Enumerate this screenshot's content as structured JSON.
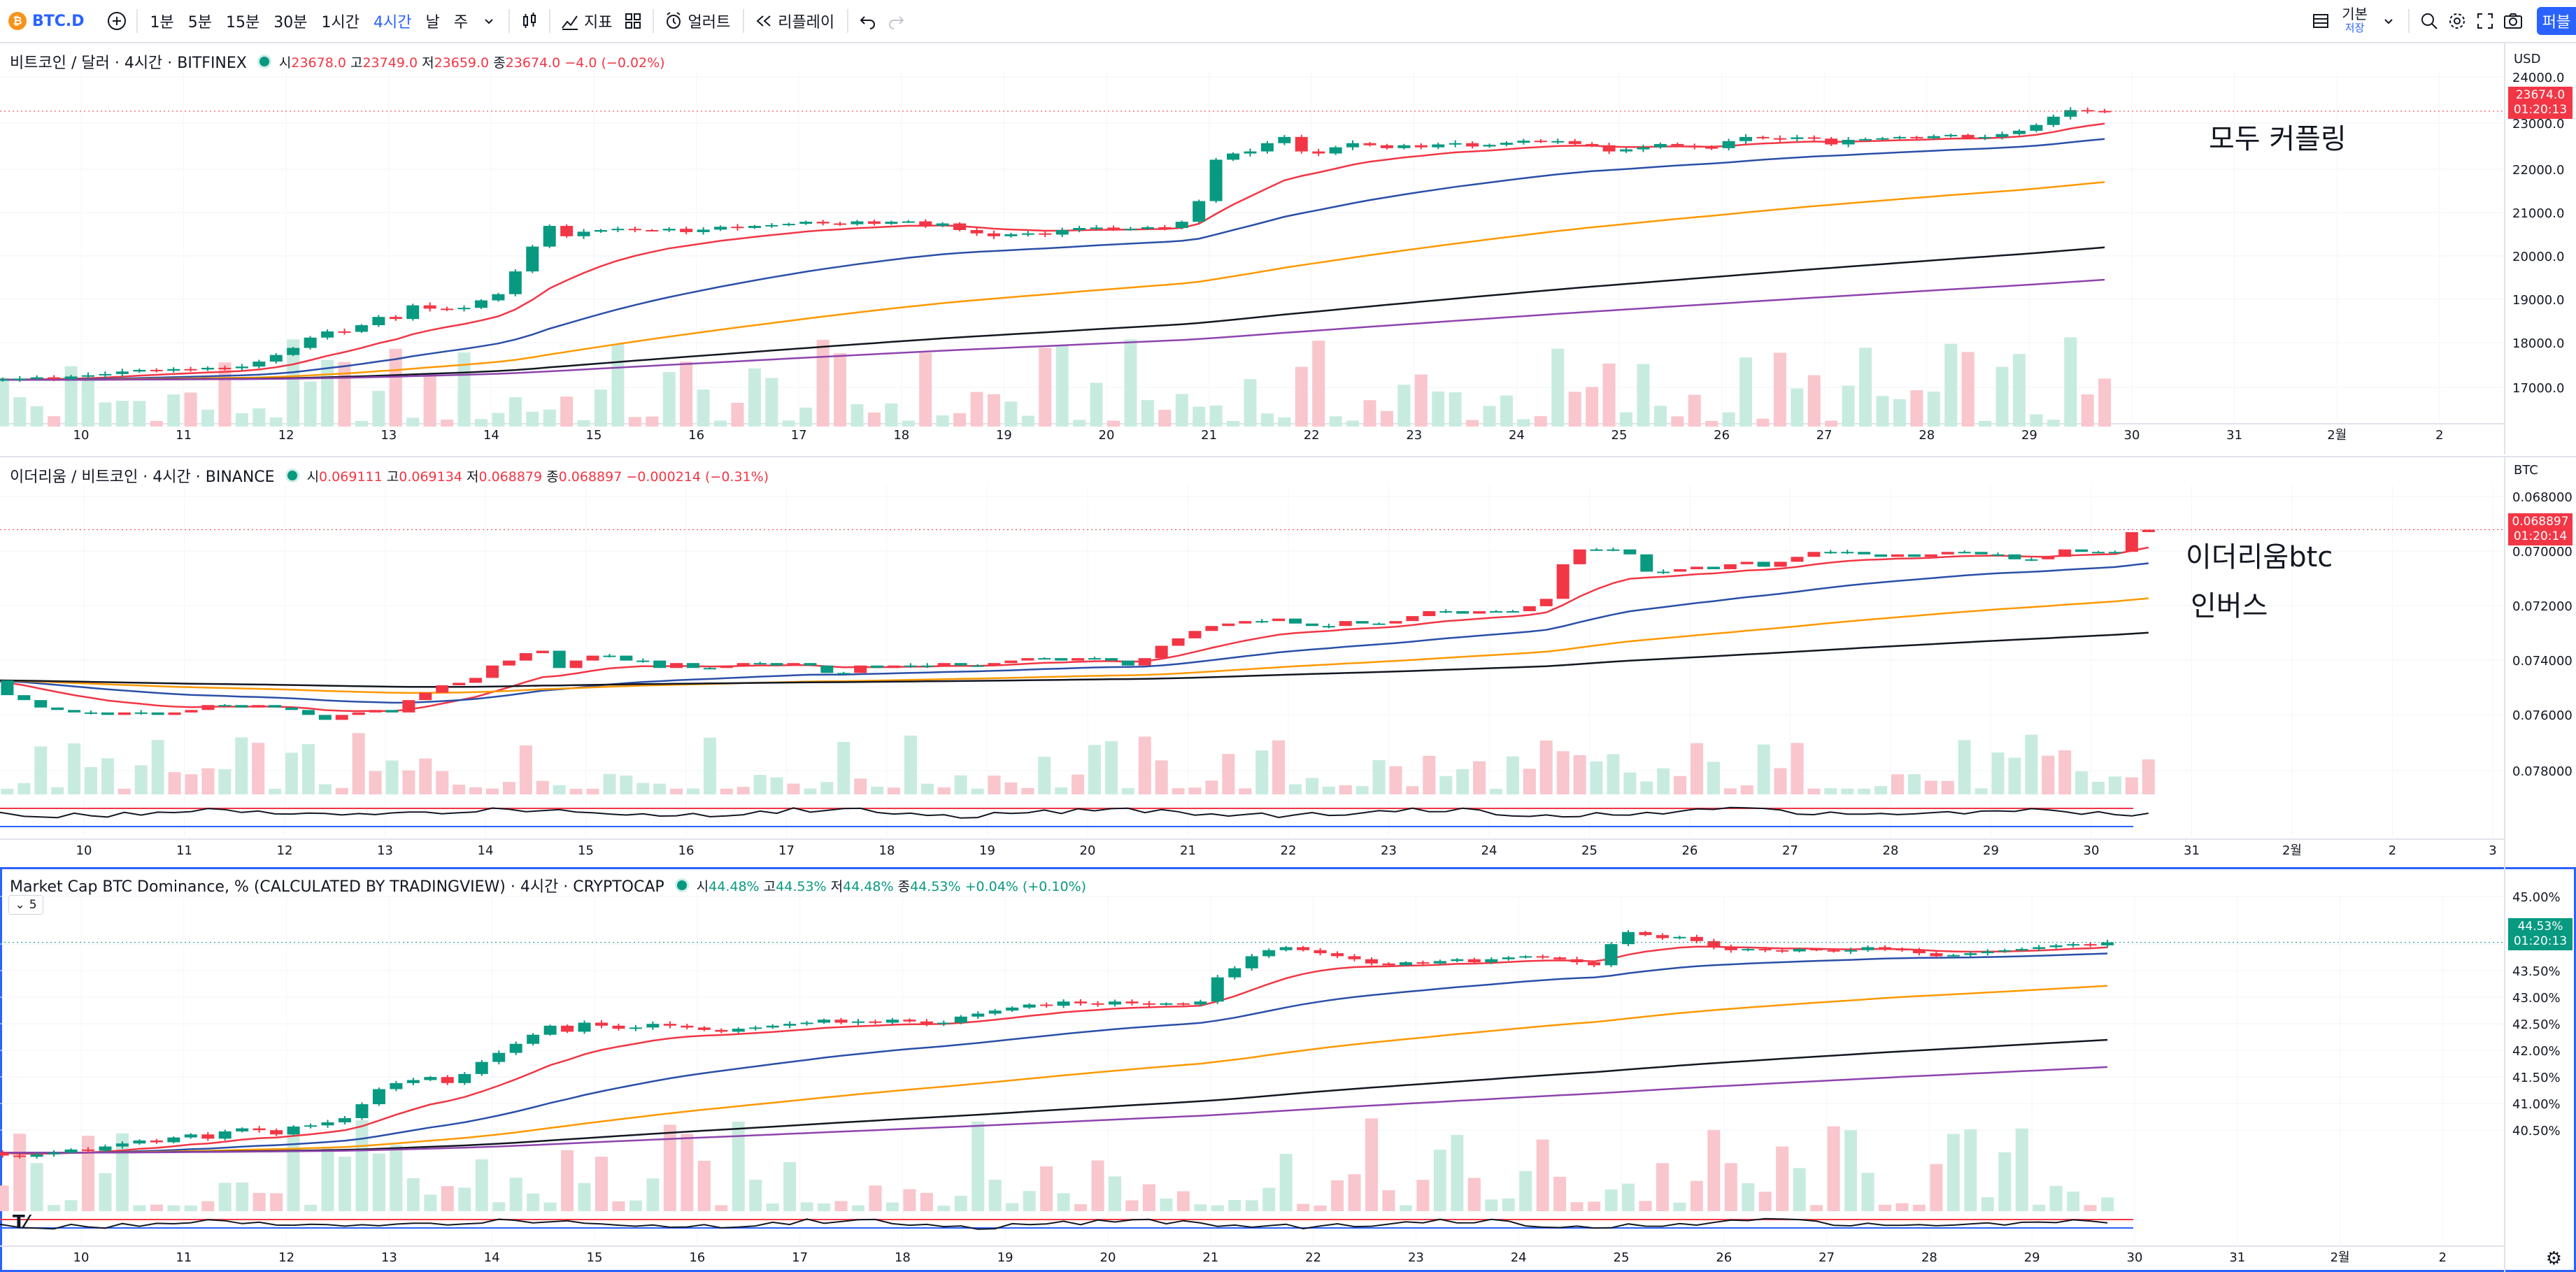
{
  "toolbar": {
    "symbol": "BTC.D",
    "intervals": [
      "1분",
      "5분",
      "15분",
      "30분",
      "1시간",
      "4시간",
      "날",
      "주"
    ],
    "active_interval": "4시간",
    "indicators_label": "지표",
    "alerts_label": "얼러트",
    "replay_label": "리플레이",
    "layout_name": "기본",
    "layout_save": "저장",
    "publish_label": "퍼블"
  },
  "colors": {
    "up": "#089981",
    "down": "#f23645",
    "ema1": "#f23645",
    "ema2": "#2a4fa8",
    "ema3": "#ff9800",
    "ema4": "#131722",
    "ema5": "#8e44ad",
    "accent": "#2962ff"
  },
  "panes": [
    {
      "title": "비트코인 / 달러 · 4시간 · BITFINEX",
      "ohlc": {
        "o_label": "시",
        "o": "23678.0",
        "h_label": "고",
        "h": "23749.0",
        "l_label": "저",
        "l": "23659.0",
        "c_label": "종",
        "c": "23674.0",
        "chg": "−4.0 (−0.02%)"
      },
      "unit": "USD",
      "price_badge": "23674.0",
      "countdown": "01:20:13",
      "annotation": "모두 커플링",
      "y_ticks": [
        "24000.0",
        "23000.0",
        "22000.0",
        "21000.0",
        "20000.0",
        "19000.0",
        "18000.0",
        "17000.0"
      ],
      "x_ticks": [
        "10",
        "11",
        "12",
        "13",
        "14",
        "15",
        "16",
        "17",
        "18",
        "19",
        "20",
        "21",
        "22",
        "23",
        "24",
        "25",
        "26",
        "27",
        "28",
        "29",
        "30",
        "31",
        "2월",
        "2"
      ]
    },
    {
      "title": "이더리움 / 비트코인 · 4시간 · BINANCE",
      "ohlc": {
        "o_label": "시",
        "o": "0.069111",
        "h_label": "고",
        "h": "0.069134",
        "l_label": "저",
        "l": "0.068879",
        "c_label": "종",
        "c": "0.068897",
        "chg": "−0.000214 (−0.31%)"
      },
      "unit": "BTC",
      "price_badge": "0.068897",
      "countdown": "01:20:14",
      "annotation_line1": "이더리움btc",
      "annotation_line2": "인버스",
      "y_ticks": [
        "0.068000",
        "0.070000",
        "0.072000",
        "0.074000",
        "0.076000",
        "0.078000"
      ],
      "x_ticks": [
        "10",
        "11",
        "12",
        "13",
        "14",
        "15",
        "16",
        "17",
        "18",
        "19",
        "20",
        "21",
        "22",
        "23",
        "24",
        "25",
        "26",
        "27",
        "28",
        "29",
        "30",
        "31",
        "2월",
        "2",
        "3"
      ]
    },
    {
      "title": "Market Cap BTC Dominance, % (CALCULATED BY TRADINGVIEW) · 4시간 · CRYPTOCAP",
      "ohlc": {
        "o_label": "시",
        "o": "44.48%",
        "h_label": "고",
        "h": "44.53%",
        "l_label": "저",
        "l": "44.48%",
        "c_label": "종",
        "c": "44.53%",
        "chg": "+0.04% (+0.10%)"
      },
      "collapse_label": "5",
      "price_badge": "44.53%",
      "countdown": "01:20:13",
      "y_ticks": [
        "45.00%",
        "44.00%",
        "43.50%",
        "43.00%",
        "42.50%",
        "42.00%",
        "41.50%",
        "41.00%",
        "40.50%"
      ],
      "x_ticks": [
        "10",
        "11",
        "12",
        "13",
        "14",
        "15",
        "16",
        "17",
        "18",
        "19",
        "20",
        "21",
        "22",
        "23",
        "24",
        "25",
        "26",
        "27",
        "28",
        "29",
        "30",
        "31",
        "2월",
        "2"
      ]
    }
  ],
  "chart_data": [
    {
      "type": "candlestick",
      "title": "비트코인 / 달러 · 4시간 · BITFINEX",
      "ylim": [
        16500,
        24400
      ],
      "x_start": "10",
      "closes": [
        17180,
        17190,
        17210,
        17240,
        17200,
        17260,
        17290,
        17320,
        17380,
        17420,
        17400,
        17440,
        17430,
        17470,
        17460,
        17500,
        17620,
        17780,
        17950,
        18200,
        18350,
        18340,
        18500,
        18700,
        18650,
        18980,
        18900,
        18890,
        18920,
        19100,
        19250,
        19800,
        20400,
        20900,
        20650,
        20760,
        20800,
        20830,
        20800,
        20790,
        20830,
        20750,
        20810,
        20880,
        20850,
        20900,
        20920,
        20950,
        21000,
        20960,
        20940,
        21010,
        20950,
        21000,
        21010,
        20900,
        20960,
        20800,
        20720,
        20650,
        20700,
        20720,
        20690,
        20800,
        20850,
        20860,
        20830,
        20830,
        20870,
        20850,
        21000,
        21500,
        22500,
        22650,
        22700,
        22900,
        23050,
        22700,
        22650,
        22800,
        22900,
        22850,
        22780,
        22850,
        22800,
        22870,
        22900,
        22820,
        22860,
        22910,
        22960,
        22940,
        22950,
        22880,
        22850,
        22700,
        22750,
        22800,
        22880,
        22840,
        22800,
        22780,
        22950,
        23050,
        23020,
        23000,
        23040,
        23010,
        22870,
        22980,
        23000,
        23020,
        23050,
        23020,
        23070,
        23100,
        23030,
        23050,
        23120,
        23200,
        23340,
        23540,
        23700,
        23680,
        23674
      ]
    },
    {
      "type": "candlestick",
      "title": "이더리움 / 비트코인 · 4시간 · BINANCE",
      "ylim": [
        0.0787,
        0.0675
      ],
      "x_start": "10",
      "closes": [
        0.075,
        0.0756,
        0.0758,
        0.0761,
        0.0762,
        0.0763,
        0.0763,
        0.0764,
        0.0763,
        0.0763,
        0.0764,
        0.0763,
        0.0762,
        0.076,
        0.076,
        0.0761,
        0.076,
        0.0761,
        0.0762,
        0.0764,
        0.0766,
        0.0764,
        0.0763,
        0.0762,
        0.0763,
        0.0758,
        0.0755,
        0.0752,
        0.0751,
        0.0749,
        0.0744,
        0.0742,
        0.0739,
        0.0738,
        0.0745,
        0.0742,
        0.074,
        0.074,
        0.0742,
        0.0742,
        0.0745,
        0.0743,
        0.0745,
        0.0745,
        0.0744,
        0.0743,
        0.0743,
        0.0744,
        0.0743,
        0.0744,
        0.0747,
        0.0747,
        0.0744,
        0.0745,
        0.0744,
        0.0744,
        0.0744,
        0.0743,
        0.0744,
        0.0744,
        0.0743,
        0.0742,
        0.0741,
        0.0741,
        0.0742,
        0.0741,
        0.0741,
        0.0742,
        0.0744,
        0.0741,
        0.0736,
        0.0733,
        0.073,
        0.0728,
        0.0727,
        0.0726,
        0.0726,
        0.0725,
        0.0727,
        0.0728,
        0.0728,
        0.0726,
        0.0727,
        0.0727,
        0.0726,
        0.0724,
        0.0722,
        0.0722,
        0.0723,
        0.0722,
        0.0722,
        0.0722,
        0.072,
        0.0717,
        0.0703,
        0.0697,
        0.0697,
        0.0697,
        0.0699,
        0.0706,
        0.0706,
        0.0705,
        0.0704,
        0.0705,
        0.0703,
        0.0702,
        0.0704,
        0.0702,
        0.07,
        0.0698,
        0.0698,
        0.0698,
        0.0699,
        0.07,
        0.0699,
        0.07,
        0.0699,
        0.0698,
        0.0698,
        0.0699,
        0.0699,
        0.0701,
        0.0701,
        0.07,
        0.0697,
        0.0698,
        0.0698,
        0.0698,
        0.069,
        0.0689
      ]
    },
    {
      "type": "candlestick",
      "title": "Market Cap BTC Dominance, % (CALCULATED BY TRADINGVIEW) · 4시간 · CRYPTOCAP",
      "ylim": [
        40.4,
        45.15
      ],
      "x_start": "10",
      "closes": [
        41.05,
        41.0,
        40.98,
        41.02,
        41.05,
        41.1,
        41.08,
        41.15,
        41.2,
        41.25,
        41.22,
        41.3,
        41.35,
        41.28,
        41.4,
        41.45,
        41.42,
        41.35,
        41.48,
        41.5,
        41.55,
        41.62,
        41.85,
        42.1,
        42.2,
        42.25,
        42.3,
        42.2,
        42.35,
        42.55,
        42.7,
        42.85,
        43.0,
        43.15,
        43.05,
        43.2,
        43.15,
        43.1,
        43.12,
        43.18,
        43.15,
        43.12,
        43.08,
        43.05,
        43.1,
        43.12,
        43.15,
        43.18,
        43.2,
        43.25,
        43.2,
        43.22,
        43.2,
        43.25,
        43.22,
        43.18,
        43.2,
        43.3,
        43.35,
        43.4,
        43.45,
        43.5,
        43.48,
        43.55,
        43.52,
        43.5,
        43.55,
        43.52,
        43.5,
        43.52,
        43.5,
        43.55,
        43.95,
        44.1,
        44.3,
        44.4,
        44.45,
        44.4,
        44.35,
        44.3,
        44.25,
        44.18,
        44.15,
        44.2,
        44.18,
        44.22,
        44.25,
        44.2,
        44.25,
        44.28,
        44.3,
        44.28,
        44.25,
        44.2,
        44.15,
        44.5,
        44.7,
        44.65,
        44.6,
        44.62,
        44.55,
        44.45,
        44.4,
        44.42,
        44.4,
        44.38,
        44.42,
        44.4,
        44.38,
        44.4,
        44.45,
        44.42,
        44.4,
        44.35,
        44.3,
        44.32,
        44.35,
        44.38,
        44.4,
        44.42,
        44.45,
        44.48,
        44.5,
        44.48,
        44.53
      ]
    }
  ]
}
